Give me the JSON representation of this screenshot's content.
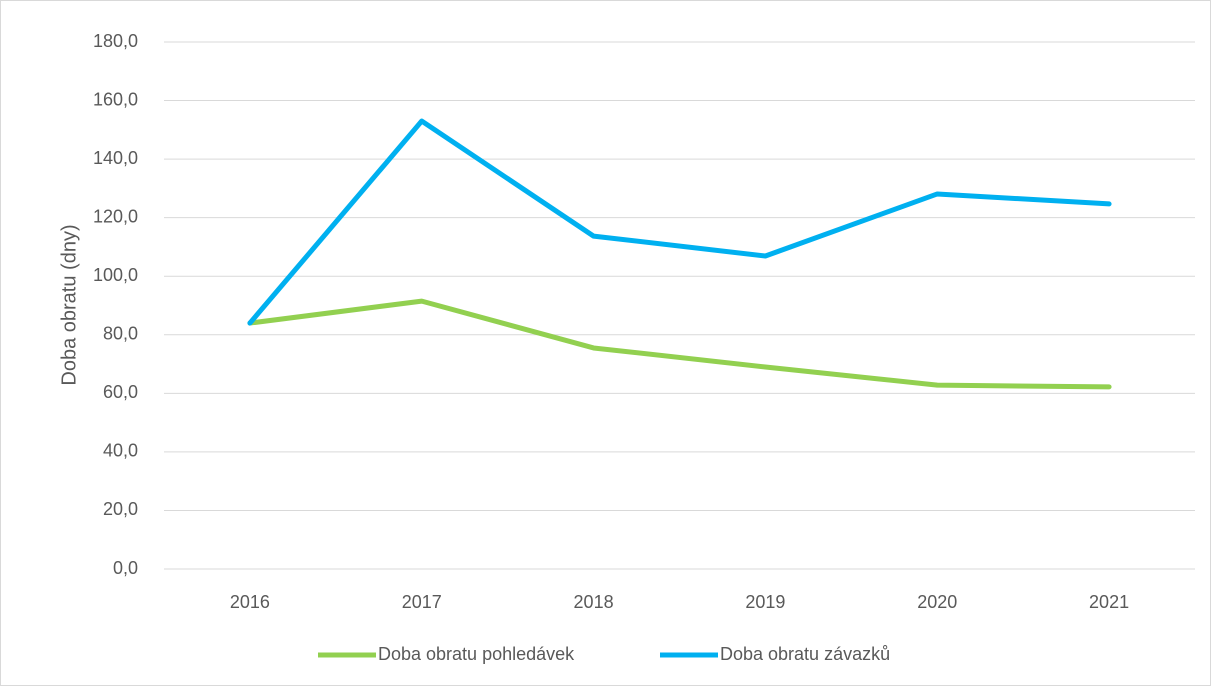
{
  "chart_data": {
    "type": "line",
    "y_label": "Doba obratu (dny)",
    "categories": [
      "2016",
      "2017",
      "2018",
      "2019",
      "2020",
      "2021"
    ],
    "series": [
      {
        "name": "Doba obratu pohledávek",
        "color": "#92d050",
        "values": [
          84.0,
          91.5,
          75.5,
          69.0,
          62.8,
          62.2
        ]
      },
      {
        "name": "Doba obratu závazků",
        "color": "#00b0f0",
        "values": [
          84.0,
          153.0,
          113.7,
          106.9,
          128.1,
          124.7
        ]
      }
    ],
    "ylim": [
      0,
      180
    ],
    "yticks": [
      {
        "value": 0,
        "label": "0,0"
      },
      {
        "value": 20,
        "label": "20,0"
      },
      {
        "value": 40,
        "label": "40,0"
      },
      {
        "value": 60,
        "label": "60,0"
      },
      {
        "value": 80,
        "label": "80,0"
      },
      {
        "value": 100,
        "label": "100,0"
      },
      {
        "value": 120,
        "label": "120,0"
      },
      {
        "value": 140,
        "label": "140,0"
      },
      {
        "value": 160,
        "label": "160,0"
      },
      {
        "value": 180,
        "label": "180,0"
      }
    ],
    "grid": true,
    "legend": "bottom"
  }
}
